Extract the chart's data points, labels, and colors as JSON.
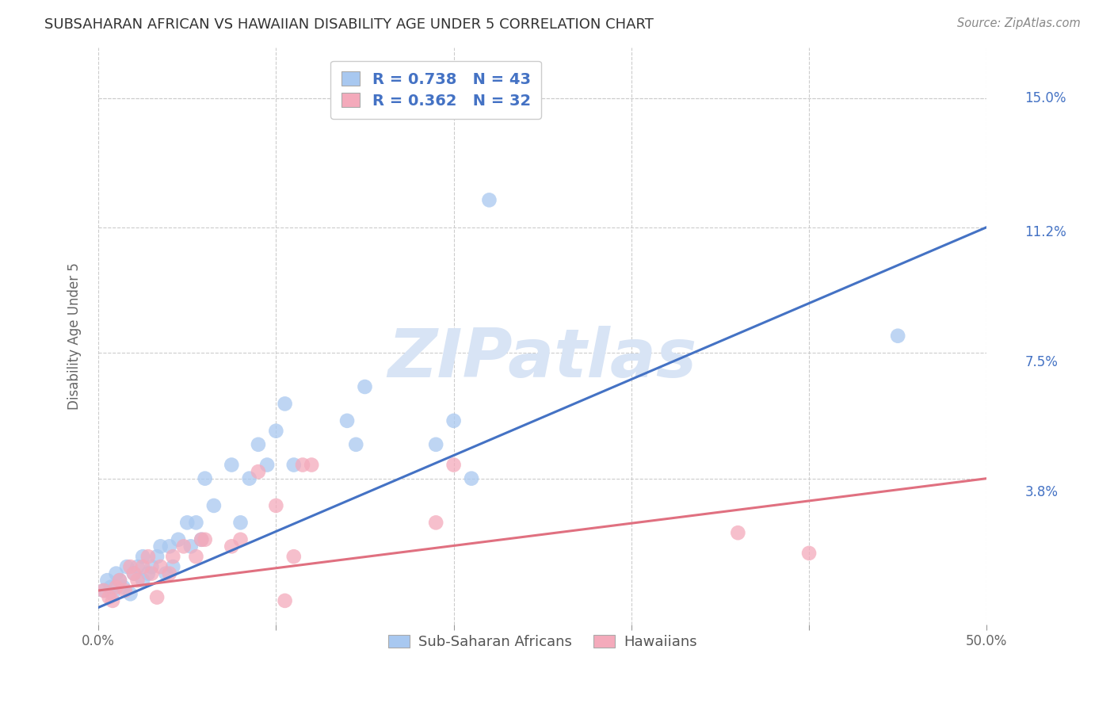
{
  "title": "SUBSAHARAN AFRICAN VS HAWAIIAN DISABILITY AGE UNDER 5 CORRELATION CHART",
  "source": "Source: ZipAtlas.com",
  "ylabel": "Disability Age Under 5",
  "xmin": 0.0,
  "xmax": 0.5,
  "ymin": -0.005,
  "ymax": 0.165,
  "xticks": [
    0.0,
    0.1,
    0.2,
    0.3,
    0.4,
    0.5
  ],
  "xticklabels": [
    "0.0%",
    "",
    "",
    "",
    "",
    "50.0%"
  ],
  "ytick_positions": [
    0.038,
    0.075,
    0.112,
    0.15
  ],
  "ytick_labels": [
    "3.8%",
    "7.5%",
    "11.2%",
    "15.0%"
  ],
  "blue_color": "#A8C8F0",
  "pink_color": "#F4AABB",
  "line_blue": "#4472C4",
  "line_pink": "#E07080",
  "legend_text_color": "#4472C4",
  "watermark_color": "#D8E4F5",
  "blue_R": "0.738",
  "blue_N": "43",
  "pink_R": "0.362",
  "pink_N": "32",
  "blue_label": "Sub-Saharan Africans",
  "pink_label": "Hawaiians",
  "blue_scatter_x": [
    0.003,
    0.005,
    0.007,
    0.008,
    0.01,
    0.012,
    0.014,
    0.016,
    0.018,
    0.02,
    0.022,
    0.025,
    0.025,
    0.028,
    0.03,
    0.033,
    0.035,
    0.038,
    0.04,
    0.042,
    0.045,
    0.05,
    0.052,
    0.055,
    0.058,
    0.06,
    0.065,
    0.075,
    0.08,
    0.085,
    0.09,
    0.095,
    0.1,
    0.105,
    0.11,
    0.14,
    0.145,
    0.15,
    0.19,
    0.2,
    0.21,
    0.22,
    0.45
  ],
  "blue_scatter_y": [
    0.005,
    0.008,
    0.006,
    0.004,
    0.01,
    0.008,
    0.006,
    0.012,
    0.004,
    0.01,
    0.012,
    0.008,
    0.015,
    0.01,
    0.012,
    0.015,
    0.018,
    0.01,
    0.018,
    0.012,
    0.02,
    0.025,
    0.018,
    0.025,
    0.02,
    0.038,
    0.03,
    0.042,
    0.025,
    0.038,
    0.048,
    0.042,
    0.052,
    0.06,
    0.042,
    0.055,
    0.048,
    0.065,
    0.048,
    0.055,
    0.038,
    0.12,
    0.08
  ],
  "pink_scatter_x": [
    0.003,
    0.006,
    0.008,
    0.01,
    0.012,
    0.015,
    0.018,
    0.02,
    0.022,
    0.025,
    0.028,
    0.03,
    0.033,
    0.035,
    0.04,
    0.042,
    0.048,
    0.055,
    0.058,
    0.06,
    0.075,
    0.08,
    0.09,
    0.1,
    0.105,
    0.11,
    0.115,
    0.12,
    0.19,
    0.2,
    0.36,
    0.4
  ],
  "pink_scatter_y": [
    0.005,
    0.003,
    0.002,
    0.006,
    0.008,
    0.005,
    0.012,
    0.01,
    0.008,
    0.012,
    0.015,
    0.01,
    0.003,
    0.012,
    0.01,
    0.015,
    0.018,
    0.015,
    0.02,
    0.02,
    0.018,
    0.02,
    0.04,
    0.03,
    0.002,
    0.015,
    0.042,
    0.042,
    0.025,
    0.042,
    0.022,
    0.016
  ],
  "blue_line_x": [
    0.0,
    0.5
  ],
  "blue_line_y": [
    0.0,
    0.112
  ],
  "pink_line_x": [
    0.0,
    0.5
  ],
  "pink_line_y": [
    0.005,
    0.038
  ],
  "grid_color": "#CCCCCC",
  "background_color": "#FFFFFF"
}
